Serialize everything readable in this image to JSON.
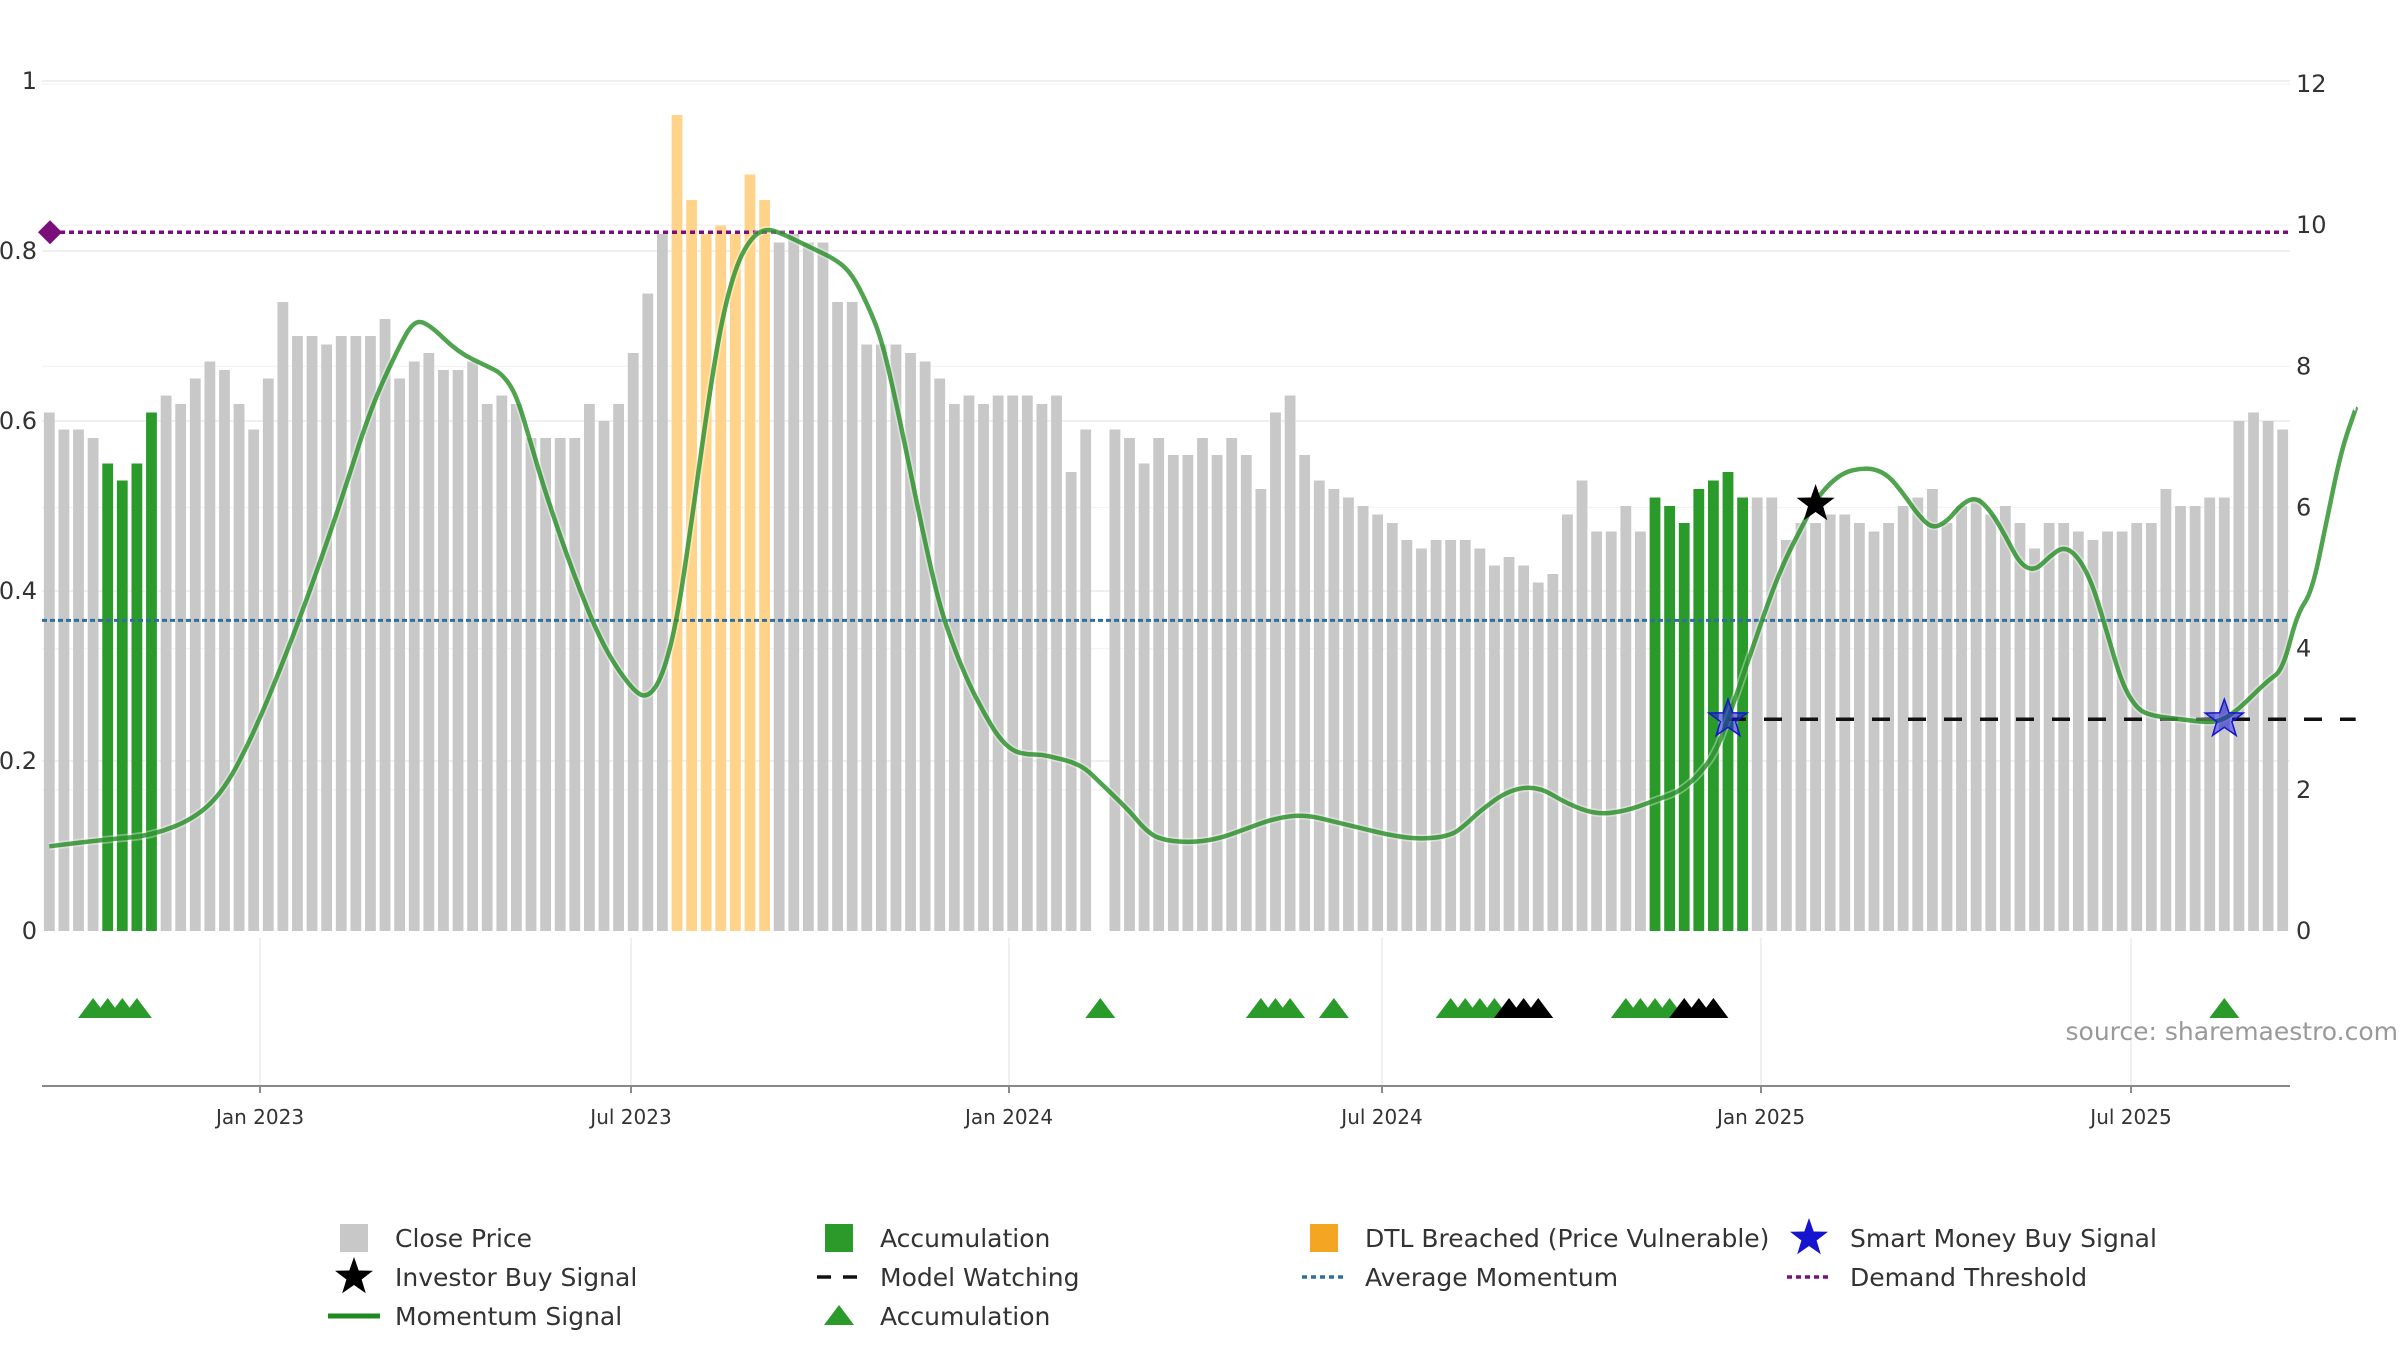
{
  "chart_data": {
    "type": "bar",
    "source": "source: sharemaestro.com",
    "colors": {
      "close_price": "#c8c8c8",
      "accumulation": "#2a9a2a",
      "dtl_breached": "#ffd48a",
      "momentum": "#1f8a1f",
      "average_momentum": "#2f6f9f",
      "demand_threshold": "#7a0e7a",
      "smart_money": "#1515d0",
      "investor": "#000000",
      "model_watching": "#111111"
    },
    "x_ticks": [
      "Jan 2023",
      "Jul 2023",
      "Jan 2024",
      "Jul 2024",
      "Jan 2025",
      "Jul 2025"
    ],
    "left_axis": {
      "ticks": [
        "0",
        "0.2",
        "0.4",
        "0.6",
        "0.8",
        "1"
      ],
      "ylim": [
        0,
        1
      ]
    },
    "right_axis": {
      "ticks": [
        "0",
        "2",
        "4",
        "6",
        "8",
        "10",
        "12"
      ],
      "ylim": [
        0,
        12
      ]
    },
    "bar_states": "GGGGAAAAGGGGGGGGGGGGGGGGGGGGGGGGGGGGGGGGGGGGGGGGGGGGGGGGGGGGGGGGGGGGGGGGGGGGGGGGGGGGGGGGGGGGGGGGGGGGGGGGGGGGGGAAAAAAAGGGGGGGGGGGGGGGGGGGGGGGGGGGGGGGGGGGGGGGGGGGGGGAGGGGGGGGGGGGGAAAGGGGGGGGGGGGGGGGAAAAAAGGGGGGGGGGGGGGAAAAAAAAAAAGGGGGGGGGGGGGGGGGGGGGGGGGGGGGGGGGGAGGGGGGGGGG",
    "bars": [
      0.61,
      0.59,
      0.59,
      0.58,
      0.55,
      0.53,
      0.55,
      0.61,
      0.63,
      0.62,
      0.65,
      0.67,
      0.66,
      0.62,
      0.59,
      0.65,
      0.74,
      0.7,
      0.7,
      0.69,
      0.7,
      0.7,
      0.7,
      0.72,
      0.65,
      0.67,
      0.68,
      0.66,
      0.66,
      0.67,
      0.62,
      0.63,
      0.62,
      0.58,
      0.58,
      0.58,
      0.58,
      0.62,
      0.6,
      0.62,
      0.68,
      0.75,
      0.82,
      0.96,
      0.86,
      0.82,
      0.83,
      0.82,
      0.89,
      0.86,
      0.81,
      0.82,
      0.81,
      0.81,
      0.74,
      0.74,
      0.69,
      0.69,
      0.69,
      0.68,
      0.67,
      0.65,
      0.62,
      0.63,
      0.62,
      0.63,
      0.63,
      0.63,
      0.62,
      0.63,
      0.54,
      0.59,
      0.0,
      0.59,
      0.58,
      0.55,
      0.58,
      0.56,
      0.56,
      0.58,
      0.56,
      0.58,
      0.56,
      0.52,
      0.61,
      0.63,
      0.56,
      0.53,
      0.52,
      0.51,
      0.5,
      0.49,
      0.48,
      0.46,
      0.45,
      0.46,
      0.46,
      0.46,
      0.45,
      0.43,
      0.44,
      0.43,
      0.41,
      0.42,
      0.49,
      0.53,
      0.47,
      0.47,
      0.5,
      0.47,
      0.51,
      0.5,
      0.48,
      0.52,
      0.53,
      0.54,
      0.51,
      0.51,
      0.51,
      0.46,
      0.48,
      0.48,
      0.49,
      0.49,
      0.48,
      0.47,
      0.48,
      0.5,
      0.51,
      0.52,
      0.48,
      0.5,
      0.51,
      0.49,
      0.5,
      0.48,
      0.45,
      0.48,
      0.48,
      0.47,
      0.46,
      0.47,
      0.47,
      0.48,
      0.48,
      0.52,
      0.5,
      0.5,
      0.51,
      0.51,
      0.6,
      0.61,
      0.6,
      0.59
    ],
    "momentum": [
      [
        0,
        1.2
      ],
      [
        4,
        1.3
      ],
      [
        7,
        1.35
      ],
      [
        10,
        1.6
      ],
      [
        12,
        2.0
      ],
      [
        14,
        2.8
      ],
      [
        16,
        3.8
      ],
      [
        18,
        4.9
      ],
      [
        20,
        6.1
      ],
      [
        22,
        7.4
      ],
      [
        24,
        8.3
      ],
      [
        25,
        8.65
      ],
      [
        26,
        8.6
      ],
      [
        28,
        8.2
      ],
      [
        30,
        8.0
      ],
      [
        31,
        7.9
      ],
      [
        32,
        7.6
      ],
      [
        33,
        6.9
      ],
      [
        34,
        6.2
      ],
      [
        36,
        5.0
      ],
      [
        38,
        4.0
      ],
      [
        40,
        3.4
      ],
      [
        41,
        3.3
      ],
      [
        42,
        3.6
      ],
      [
        43,
        4.4
      ],
      [
        44,
        5.8
      ],
      [
        45,
        7.3
      ],
      [
        46,
        8.6
      ],
      [
        47,
        9.4
      ],
      [
        48,
        9.8
      ],
      [
        49,
        9.95
      ],
      [
        50,
        9.9
      ],
      [
        52,
        9.7
      ],
      [
        54,
        9.5
      ],
      [
        55,
        9.3
      ],
      [
        56,
        8.9
      ],
      [
        57,
        8.4
      ],
      [
        58,
        7.5
      ],
      [
        59,
        6.5
      ],
      [
        60,
        5.5
      ],
      [
        61,
        4.6
      ],
      [
        62,
        4.0
      ],
      [
        63,
        3.5
      ],
      [
        64,
        3.1
      ],
      [
        65,
        2.75
      ],
      [
        66,
        2.55
      ],
      [
        67,
        2.5
      ],
      [
        68,
        2.5
      ],
      [
        69,
        2.45
      ],
      [
        70,
        2.4
      ],
      [
        71,
        2.3
      ],
      [
        72,
        2.1
      ],
      [
        74,
        1.7
      ],
      [
        75,
        1.45
      ],
      [
        76,
        1.3
      ],
      [
        78,
        1.25
      ],
      [
        80,
        1.3
      ],
      [
        82,
        1.45
      ],
      [
        84,
        1.6
      ],
      [
        86,
        1.65
      ],
      [
        88,
        1.55
      ],
      [
        90,
        1.45
      ],
      [
        92,
        1.35
      ],
      [
        94,
        1.3
      ],
      [
        96,
        1.35
      ],
      [
        97,
        1.5
      ],
      [
        98,
        1.7
      ],
      [
        100,
        2.0
      ],
      [
        102,
        2.05
      ],
      [
        104,
        1.8
      ],
      [
        106,
        1.65
      ],
      [
        108,
        1.7
      ],
      [
        110,
        1.85
      ],
      [
        112,
        2.0
      ],
      [
        114,
        2.45
      ],
      [
        115,
        3.0
      ],
      [
        116,
        3.6
      ],
      [
        117,
        4.2
      ],
      [
        118,
        4.8
      ],
      [
        119,
        5.3
      ],
      [
        120,
        5.7
      ],
      [
        121,
        6.1
      ],
      [
        122,
        6.35
      ],
      [
        123,
        6.5
      ],
      [
        124,
        6.55
      ],
      [
        125,
        6.55
      ],
      [
        126,
        6.45
      ],
      [
        127,
        6.2
      ],
      [
        128,
        5.9
      ],
      [
        129,
        5.7
      ],
      [
        130,
        5.8
      ],
      [
        131,
        6.05
      ],
      [
        132,
        6.15
      ],
      [
        133,
        5.95
      ],
      [
        134,
        5.6
      ],
      [
        135,
        5.2
      ],
      [
        136,
        5.1
      ],
      [
        137,
        5.3
      ],
      [
        138,
        5.45
      ],
      [
        139,
        5.3
      ],
      [
        140,
        4.9
      ],
      [
        141,
        4.2
      ],
      [
        142,
        3.5
      ],
      [
        143,
        3.15
      ],
      [
        144,
        3.05
      ],
      [
        146,
        3.0
      ],
      [
        148,
        2.95
      ],
      [
        149,
        3.0
      ],
      [
        150,
        3.15
      ],
      [
        151,
        3.35
      ],
      [
        152,
        3.55
      ],
      [
        153,
        3.7
      ],
      [
        154,
        4.5
      ],
      [
        155,
        4.8
      ],
      [
        156,
        5.8
      ],
      [
        157,
        6.8
      ],
      [
        158,
        7.4
      ]
    ],
    "average_momentum": 4.4,
    "demand_threshold": 9.9,
    "model_watching": {
      "level": 3.0,
      "from": 115,
      "to": 158
    },
    "smart_money_signals": [
      {
        "x": 115,
        "y": 3.0
      },
      {
        "x": 149,
        "y": 3.0
      }
    ],
    "investor_signals": [
      {
        "x": 121,
        "y": 6.05
      }
    ],
    "accum_triangles_green": [
      3,
      4,
      5,
      6,
      72,
      83,
      84,
      85,
      88,
      96,
      97,
      98,
      99,
      108,
      109,
      110,
      111,
      149
    ],
    "accum_triangles_black": [
      100,
      101,
      102,
      112,
      113,
      114
    ],
    "legend": [
      {
        "label": "Close Price",
        "symbol": "square-gray"
      },
      {
        "label": "Accumulation",
        "symbol": "square-green"
      },
      {
        "label": "DTL Breached (Price Vulnerable)",
        "symbol": "square-orange"
      },
      {
        "label": "Smart Money Buy Signal",
        "symbol": "star-blue"
      },
      {
        "label": "Investor Buy Signal",
        "symbol": "star-black"
      },
      {
        "label": "Model Watching",
        "symbol": "dash-black"
      },
      {
        "label": "Average Momentum",
        "symbol": "dot-blue"
      },
      {
        "label": "Demand Threshold",
        "symbol": "dot-purple"
      },
      {
        "label": "Momentum Signal",
        "symbol": "line-green"
      },
      {
        "label": "Accumulation",
        "symbol": "triangle-green"
      }
    ]
  }
}
